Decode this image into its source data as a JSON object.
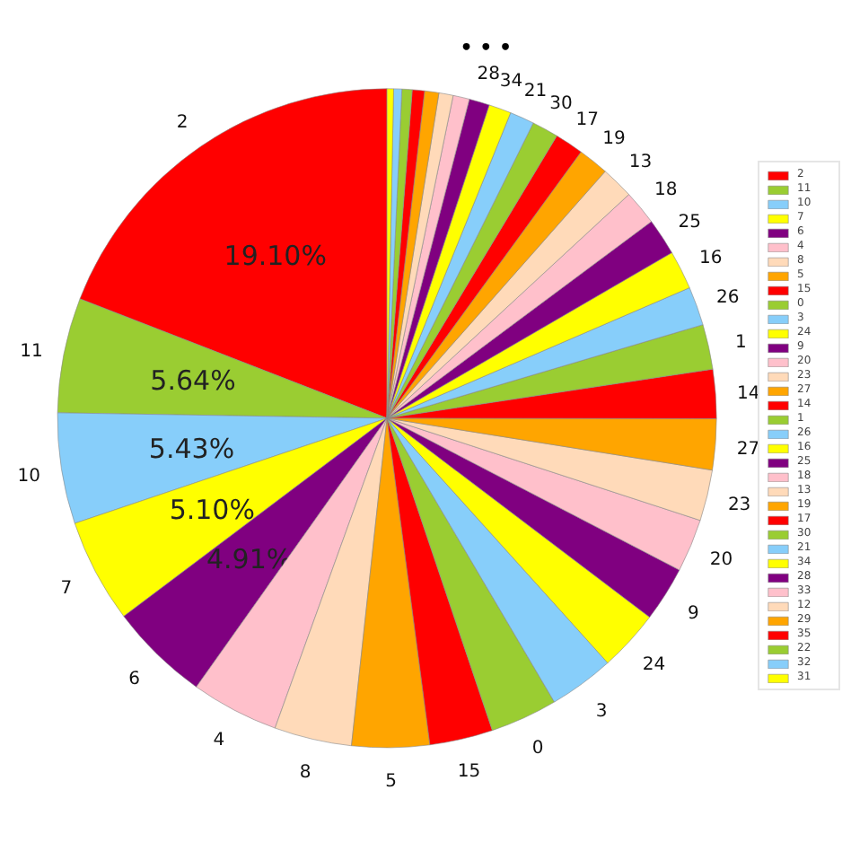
{
  "chart_data": {
    "type": "pie",
    "categories": [
      "2",
      "11",
      "10",
      "7",
      "6",
      "4",
      "8",
      "5",
      "15",
      "0",
      "3",
      "24",
      "9",
      "20",
      "23",
      "27",
      "14",
      "1",
      "26",
      "16",
      "25",
      "18",
      "13",
      "19",
      "17",
      "30",
      "21",
      "34",
      "28",
      "33",
      "12",
      "29",
      "35",
      "22",
      "32",
      "31"
    ],
    "values": [
      19.1,
      5.64,
      5.43,
      5.1,
      4.91,
      4.3,
      3.8,
      3.8,
      3.1,
      3.3,
      3.2,
      3.0,
      2.7,
      2.6,
      2.5,
      2.5,
      2.4,
      2.2,
      1.9,
      1.9,
      1.8,
      1.7,
      1.6,
      1.5,
      1.4,
      1.3,
      1.2,
      1.1,
      1.0,
      0.8,
      0.7,
      0.7,
      0.6,
      0.5,
      0.4,
      0.32
    ],
    "colors": [
      "#ff0000",
      "#9acd32",
      "#87cefa",
      "#ffff00",
      "#800080",
      "#ffc0cb",
      "#ffdab9",
      "#ffa500",
      "#ff0000",
      "#9acd32",
      "#87cefa",
      "#ffff00",
      "#800080",
      "#ffc0cb",
      "#ffdab9",
      "#ffa500",
      "#ff0000",
      "#9acd32",
      "#87cefa",
      "#ffff00",
      "#800080",
      "#ffc0cb",
      "#ffdab9",
      "#ffa500",
      "#ff0000",
      "#9acd32",
      "#87cefa",
      "#ffff00",
      "#800080",
      "#ffc0cb",
      "#ffdab9",
      "#ffa500",
      "#ff0000",
      "#9acd32",
      "#87cefa",
      "#ffff00"
    ],
    "value_labels": [
      "19.10%",
      "5.64%",
      "5.43%",
      "5.10%",
      "4.91%",
      null,
      null,
      null,
      null,
      null,
      null,
      null,
      null,
      null,
      null,
      null,
      null,
      null,
      null,
      null,
      null,
      null,
      null,
      null,
      null,
      null,
      null,
      null,
      null,
      null,
      null,
      null,
      null,
      null,
      null,
      null
    ],
    "annotations": [
      "• • •"
    ],
    "legend": "right"
  }
}
